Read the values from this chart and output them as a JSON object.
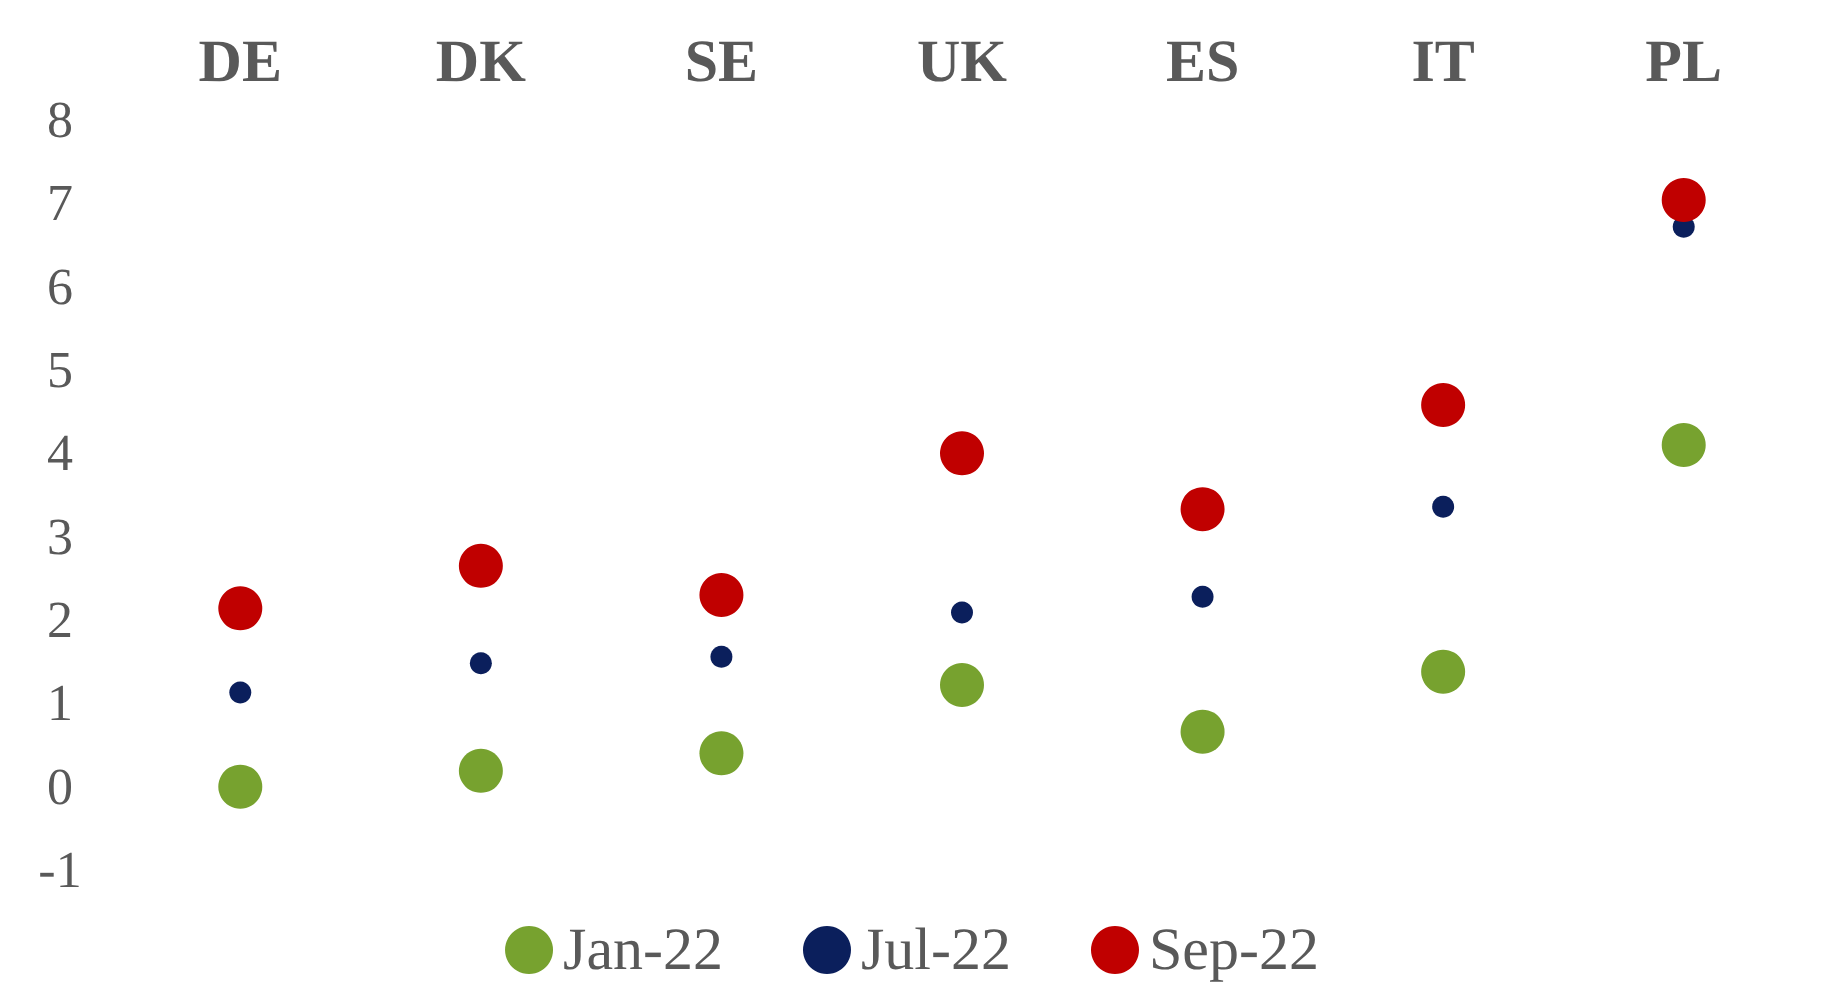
{
  "chart_data": {
    "type": "scatter",
    "categories": [
      "DE",
      "DK",
      "SE",
      "UK",
      "ES",
      "IT",
      "PL"
    ],
    "series": [
      {
        "name": "Jan-22",
        "color": "#77a22f",
        "values": [
          0.0,
          0.19,
          0.4,
          1.22,
          0.66,
          1.38,
          4.1
        ]
      },
      {
        "name": "Jul-22",
        "color": "#0b1f5c",
        "values": [
          1.13,
          1.48,
          1.56,
          2.09,
          2.28,
          3.36,
          6.72
        ]
      },
      {
        "name": "Sep-22",
        "color": "#c00000",
        "values": [
          2.14,
          2.65,
          2.3,
          4.0,
          3.33,
          4.58,
          7.04
        ]
      }
    ],
    "ylim": [
      -1,
      8
    ],
    "yticks": [
      -1,
      0,
      1,
      2,
      3,
      4,
      5,
      6,
      7,
      8
    ],
    "grid": false,
    "legend": "bottom",
    "marker": "circle"
  }
}
